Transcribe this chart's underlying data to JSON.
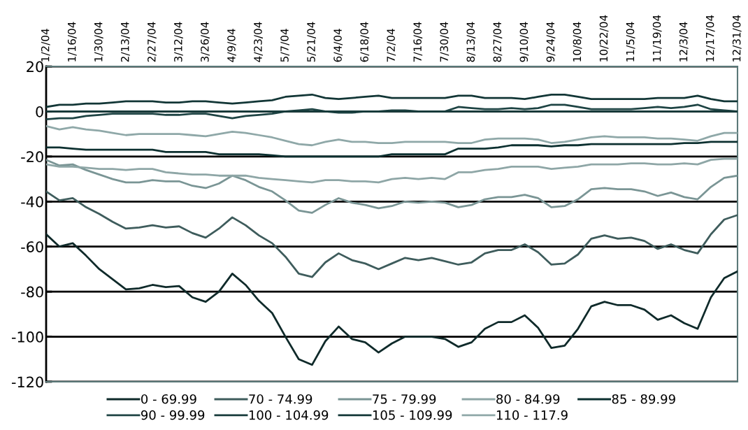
{
  "chart_data": {
    "type": "line",
    "categories": [
      "1/2/04",
      null,
      "1/16/04",
      null,
      "1/30/04",
      null,
      "2/13/04",
      null,
      "2/27/04",
      null,
      "3/12/04",
      null,
      "3/26/04",
      null,
      "4/9/04",
      null,
      "4/23/04",
      null,
      "5/7/04",
      null,
      "5/21/04",
      null,
      "6/4/04",
      null,
      "6/18/04",
      null,
      "7/2/04",
      null,
      "7/16/04",
      null,
      "7/30/04",
      null,
      "8/13/04",
      null,
      "8/27/04",
      null,
      "9/10/04",
      null,
      "9/24/04",
      null,
      "10/8/04",
      null,
      "10/22/04",
      null,
      "11/5/04",
      null,
      "11/19/04",
      null,
      "12/3/04",
      null,
      "12/17/04",
      null,
      "12/31/04"
    ],
    "ylim": [
      -120,
      20
    ],
    "yticks": [
      -120,
      -100,
      -80,
      -60,
      -40,
      -20,
      0,
      20
    ],
    "grid": "y",
    "legend": "bottom",
    "marker": "none",
    "line_style": "solid",
    "series": [
      {
        "name": "0 - 69.99",
        "color": "#0f2a2a",
        "values": [
          -54.5,
          -60,
          -58.5,
          -64,
          -70,
          -74.5,
          -79,
          -78.5,
          -77,
          -78,
          -77.5,
          -82.5,
          -84.5,
          -80,
          -72,
          -77,
          -84,
          -89.5,
          -100,
          -110,
          -112.5,
          -102,
          -95.5,
          -101,
          -102.5,
          -107,
          -103,
          -100,
          -100,
          -100,
          -101,
          -104.5,
          -102.5,
          -96.5,
          -93.5,
          -93.5,
          -90.5,
          -96,
          -105,
          -104,
          -96.5,
          -86.5,
          -84.5,
          -86,
          -86,
          -88,
          -92.5,
          -90.5,
          -94,
          -96.5,
          -82.5,
          -74,
          -71
        ]
      },
      {
        "name": "70 - 74.99",
        "color": "#3e5c5c",
        "values": [
          -35.5,
          -39.5,
          -38.5,
          -42.5,
          -45.5,
          -49,
          -52,
          -51.5,
          -50.5,
          -51.5,
          -51,
          -54,
          -56,
          -52,
          -47,
          -50.5,
          -55,
          -58.5,
          -64.5,
          -72,
          -73.5,
          -67,
          -63,
          -66,
          -67.5,
          -70,
          -67.5,
          -65,
          -66,
          -65,
          -66.5,
          -68,
          -67,
          -63,
          -61.5,
          -61.5,
          -59,
          -62.5,
          -68,
          -67.5,
          -63.5,
          -56.5,
          -55,
          -56.5,
          -56,
          -57.5,
          -61,
          -59,
          -61.5,
          -63,
          -54.5,
          -48,
          -46
        ]
      },
      {
        "name": "75 - 79.99",
        "color": "#7a9595",
        "values": [
          -21.5,
          -24,
          -23.5,
          -26,
          -28,
          -30,
          -31.5,
          -31.5,
          -30.5,
          -31,
          -31,
          -33,
          -34,
          -32,
          -28.5,
          -30.5,
          -33.5,
          -35.5,
          -39.5,
          -44,
          -45,
          -41.5,
          -38.5,
          -40.5,
          -41.5,
          -43,
          -42,
          -40,
          -40.5,
          -40,
          -40.5,
          -42.5,
          -41.5,
          -39,
          -38,
          -38,
          -37,
          -38.5,
          -42.5,
          -42,
          -39,
          -34.5,
          -34,
          -34.5,
          -34.5,
          -35.5,
          -37.5,
          -36,
          -38,
          -39,
          -33.5,
          -29.5,
          -28.5
        ]
      },
      {
        "name": "80 - 84.99",
        "color": "#8ea6a6",
        "values": [
          -23.5,
          -24.5,
          -24.5,
          -25,
          -25.5,
          -25.5,
          -26,
          -25.5,
          -25.5,
          -27,
          -27.5,
          -28,
          -28,
          -28.5,
          -28.5,
          -28.5,
          -29.5,
          -30,
          -30.5,
          -31,
          -31.5,
          -30.5,
          -30.5,
          -31,
          -31,
          -31.5,
          -30,
          -29.5,
          -30,
          -29.5,
          -30,
          -27,
          -27,
          -26,
          -25.5,
          -24.5,
          -24.5,
          -24.5,
          -25.5,
          -25,
          -24.5,
          -23.5,
          -23.5,
          -23.5,
          -23,
          -23,
          -23.5,
          -23.5,
          -23,
          -23.5,
          -21.5,
          -21,
          -21
        ]
      },
      {
        "name": "85 - 89.99",
        "color": "#0c3030",
        "values": [
          -16,
          -16,
          -16.5,
          -17,
          -17,
          -17,
          -17,
          -17,
          -17,
          -18,
          -18,
          -18,
          -18,
          -19,
          -19,
          -19,
          -19,
          -19.5,
          -20,
          -20,
          -20,
          -20,
          -20,
          -20,
          -20,
          -20,
          -19,
          -19,
          -19,
          -19,
          -19,
          -16.5,
          -16.5,
          -16.5,
          -16,
          -15,
          -15,
          -15,
          -15.5,
          -15,
          -15,
          -14.5,
          -14.5,
          -14.5,
          -14.5,
          -14.5,
          -14.5,
          -14.5,
          -14,
          -14,
          -13.5,
          -13.5,
          -13.5
        ]
      },
      {
        "name": "90 - 99.99",
        "color": "#1e4444",
        "values": [
          -3.5,
          -3,
          -3,
          -2,
          -1.5,
          -1,
          -1,
          -1,
          -1,
          -1.5,
          -1.5,
          -1,
          -1,
          -2,
          -3,
          -2,
          -1.5,
          -1,
          0,
          0.5,
          1,
          0,
          -0.5,
          -0.5,
          0,
          0,
          0.5,
          0.5,
          0,
          0,
          0,
          2,
          1.5,
          1,
          1,
          1.5,
          1,
          1.5,
          3,
          3,
          2,
          1,
          1,
          1,
          1,
          1.5,
          2,
          1.5,
          2,
          3,
          1,
          0.5,
          0
        ]
      },
      {
        "name": "100 - 104.99",
        "color": "#163a3a",
        "values": [
          0,
          0,
          0,
          0,
          0,
          0,
          0,
          0,
          0,
          0,
          0,
          0,
          0,
          0,
          0,
          0,
          0,
          0,
          0,
          0,
          0,
          0,
          0,
          0,
          0,
          0,
          0,
          0,
          0,
          0,
          0,
          0,
          0,
          0,
          0,
          0,
          0,
          0,
          0,
          0,
          0,
          0,
          0,
          0,
          0,
          0,
          0,
          0,
          0,
          0,
          0,
          0,
          0
        ]
      },
      {
        "name": "105 - 109.99",
        "color": "#123636",
        "values": [
          2,
          3,
          3,
          3.5,
          3.5,
          4,
          4.5,
          4.5,
          4.5,
          4,
          4,
          4.5,
          4.5,
          4,
          3.5,
          4,
          4.5,
          5,
          6.5,
          7,
          7.5,
          6,
          5.5,
          6,
          6.5,
          7,
          6,
          6,
          6,
          6,
          6,
          7,
          7,
          6,
          6,
          6,
          5.5,
          6.5,
          7.5,
          7.5,
          6.5,
          5.5,
          5.5,
          5.5,
          5.5,
          5.5,
          6,
          6,
          6,
          7,
          5.5,
          4.5,
          4.5
        ]
      },
      {
        "name": "110 - 117.9",
        "color": "#8fa8a8",
        "values": [
          -6.5,
          -8,
          -7,
          -8,
          -8.5,
          -9.5,
          -10.5,
          -10,
          -10,
          -10,
          -10,
          -10.5,
          -11,
          -10,
          -9,
          -9.5,
          -10.5,
          -11.5,
          -13,
          -14.5,
          -15,
          -13.5,
          -12.5,
          -13.5,
          -13.5,
          -14,
          -14,
          -13.5,
          -13.5,
          -13.5,
          -13.5,
          -14,
          -14,
          -12.5,
          -12,
          -12,
          -12,
          -12.5,
          -14,
          -13.5,
          -12.5,
          -11.5,
          -11,
          -11.5,
          -11.5,
          -11.5,
          -12,
          -12,
          -12.5,
          -13,
          -11,
          -9.5,
          -9.5
        ]
      }
    ]
  }
}
